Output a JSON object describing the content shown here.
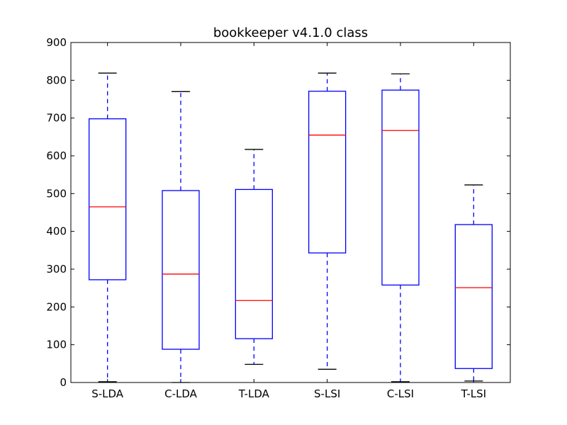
{
  "chart_data": {
    "type": "box",
    "title": "bookkeeper v4.1.0 class",
    "xlabel": "",
    "ylabel": "",
    "ylim": [
      0,
      900
    ],
    "yticks": [
      0,
      100,
      200,
      300,
      400,
      500,
      600,
      700,
      800,
      900
    ],
    "ytick_labels": [
      "0",
      "100",
      "200",
      "300",
      "400",
      "500",
      "600",
      "700",
      "800",
      "900"
    ],
    "categories": [
      "S-LDA",
      "C-LDA",
      "T-LDA",
      "S-LSI",
      "C-LSI",
      "T-LSI"
    ],
    "boxes": [
      {
        "label": "S-LDA",
        "whisker_low": 2,
        "q1": 272,
        "median": 465,
        "q3": 698,
        "whisker_high": 819
      },
      {
        "label": "C-LDA",
        "whisker_low": 0,
        "q1": 88,
        "median": 287,
        "q3": 508,
        "whisker_high": 770
      },
      {
        "label": "T-LDA",
        "whisker_low": 48,
        "q1": 116,
        "median": 217,
        "q3": 511,
        "whisker_high": 617
      },
      {
        "label": "S-LSI",
        "whisker_low": 35,
        "q1": 343,
        "median": 655,
        "q3": 771,
        "whisker_high": 819
      },
      {
        "label": "C-LSI",
        "whisker_low": 2,
        "q1": 258,
        "median": 667,
        "q3": 774,
        "whisker_high": 817
      },
      {
        "label": "T-LSI",
        "whisker_low": 4,
        "q1": 37,
        "median": 251,
        "q3": 418,
        "whisker_high": 523
      }
    ],
    "grid": false,
    "colors": {
      "box": "#0000ff",
      "whisker": "#0000ff",
      "median": "#ff0000",
      "axes": "#000000"
    }
  }
}
